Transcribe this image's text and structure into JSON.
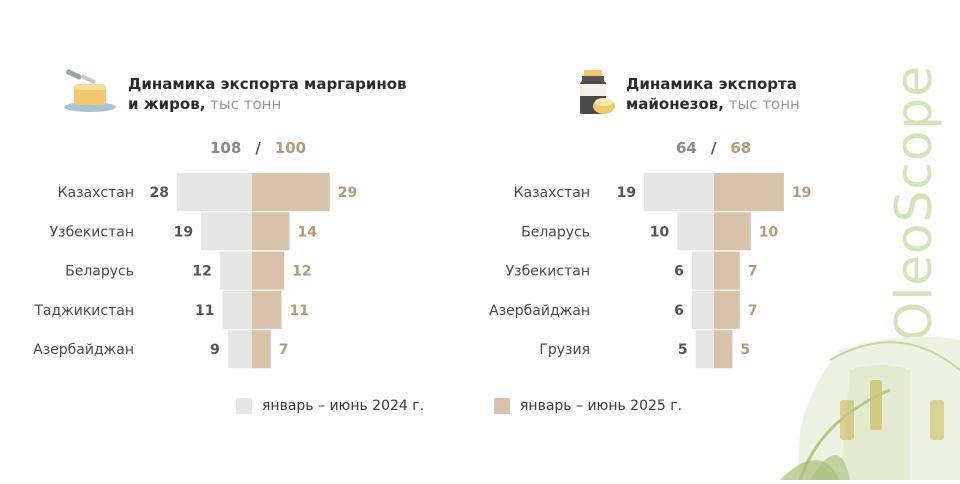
{
  "brand": {
    "name": "OleoScope"
  },
  "colors": {
    "y2024": "#e6e6e6",
    "y2025": "#d8c3aa",
    "label2024": "#555555",
    "label2025": "#b59a78",
    "total2024": "#8a8a8a",
    "total2025": "#b59a78"
  },
  "icons": {
    "left": "margarine-butter-icon",
    "right": "mayonnaise-jar-icon"
  },
  "legend": {
    "item2024": "январь – июнь 2024 г.",
    "item2025": "январь – июнь 2025 г."
  },
  "chart_data": [
    {
      "type": "bar",
      "title_line1": "Динамика экспорта маргаринов",
      "title_line2": "и жиров,",
      "unit": " тыс тонн",
      "totals": {
        "y2024": "108",
        "y2025": "100",
        "separator": "/"
      },
      "categories": [
        "Казахстан",
        "Узбекистан",
        "Беларусь",
        "Таджикистан",
        "Азербайджан"
      ],
      "series": [
        {
          "name": "январь – июнь 2024 г.",
          "values": [
            28,
            19,
            12,
            11,
            9
          ]
        },
        {
          "name": "январь – июнь 2025 г.",
          "values": [
            29,
            14,
            12,
            11,
            7
          ]
        }
      ],
      "legend": "bottom"
    },
    {
      "type": "bar",
      "title_line1": "Динамика экспорта",
      "title_line2": "майонезов,",
      "unit": " тыс тонн",
      "totals": {
        "y2024": "64",
        "y2025": "68",
        "separator": "/"
      },
      "categories": [
        "Казахстан",
        "Беларусь",
        "Узбекистан",
        "Азербайджан",
        "Грузия"
      ],
      "series": [
        {
          "name": "январь – июнь 2024 г.",
          "values": [
            19,
            10,
            6,
            6,
            5
          ]
        },
        {
          "name": "январь – июнь 2025 г.",
          "values": [
            19,
            10,
            7,
            7,
            5
          ]
        }
      ],
      "legend": "bottom"
    }
  ]
}
